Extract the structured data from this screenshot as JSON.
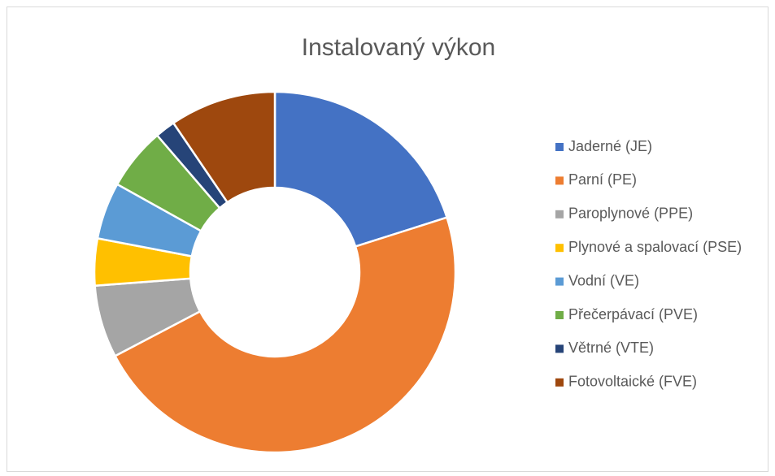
{
  "chart_data": {
    "type": "donut",
    "title": "Instalovaný výkon",
    "categories": [
      "Jaderné (JE)",
      "Parní (PE)",
      "Paroplynové (PPE)",
      "Plynové a spalovací (PSE)",
      "Vodní (VE)",
      "Přečerpávací (PVE)",
      "Větrné (VTE)",
      "Fotovoltaické (FVE)"
    ],
    "values": [
      20.1,
      47.2,
      6.5,
      4.2,
      5.1,
      5.6,
      1.8,
      9.5
    ],
    "colors": [
      "#4472c4",
      "#ed7d31",
      "#a5a5a5",
      "#ffc000",
      "#5b9bd5",
      "#70ad47",
      "#264478",
      "#9e480e"
    ],
    "legend": "right"
  }
}
